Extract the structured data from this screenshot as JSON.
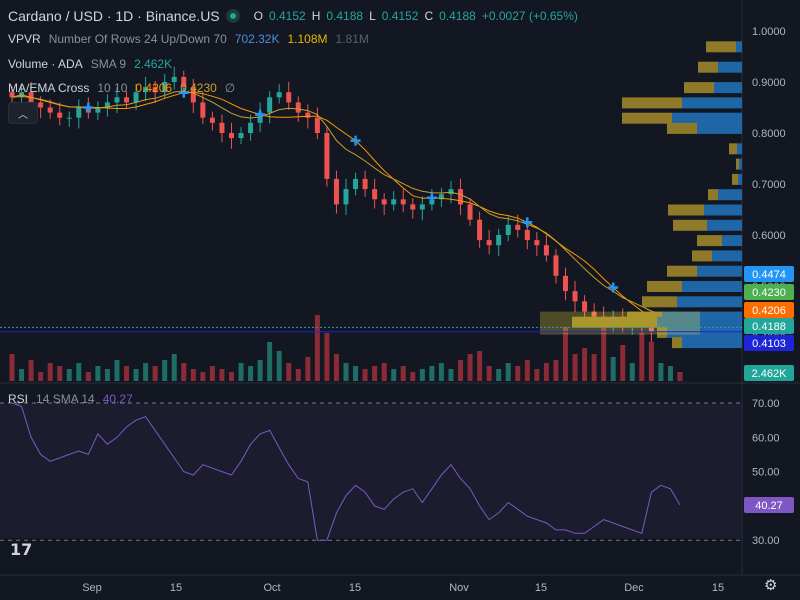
{
  "header": {
    "title": "Cardano / USD · 1D · Binance.US",
    "ohlc": [
      {
        "k": "O",
        "v": "0.4152"
      },
      {
        "k": "H",
        "v": "0.4188"
      },
      {
        "k": "L",
        "v": "0.4152"
      },
      {
        "k": "C",
        "v": "0.4188"
      }
    ],
    "change": "+0.0027 (+0.65%)"
  },
  "indicators": {
    "vpvr": {
      "name": "VPVR",
      "params": "Number Of Rows 24 Up/Down 70",
      "v1": "702.32K",
      "v2": "1.108M",
      "v3": "1.81M"
    },
    "volume": {
      "name": "Volume · ADA",
      "params": "SMA 9",
      "value": "2.462K"
    },
    "ma": {
      "name": "MA/EMA Cross",
      "params": "10 10",
      "v1": "0.4206",
      "v2": "0.4230",
      "v3": "∅"
    },
    "rsi": {
      "name": "RSI",
      "params": "14 SMA 14",
      "value": "40.27"
    }
  },
  "colors": {
    "bg": "#131722",
    "up": "#26a69a",
    "down": "#ef5350",
    "vol_up": "#1e6d66",
    "vol_down": "#8a2b35",
    "ma": "#ff9800",
    "ema": "#c8a02a",
    "cross": "#2196f3",
    "rsi": "#7e57c2",
    "vp_up": "#1e66a6",
    "vp_down": "#8f7a2a"
  },
  "price_axis": {
    "ticks": [
      "1.0000",
      "0.9000",
      "0.8000",
      "0.7000",
      "0.6000",
      "0.5000",
      "0.4000"
    ],
    "labels": [
      {
        "text": "0.4474",
        "color": "#2196f3"
      },
      {
        "text": "0.4230",
        "color": "#4caf50"
      },
      {
        "text": "0.4206",
        "color": "#ff6d00"
      },
      {
        "text": "0.4188",
        "color": "#22a69a"
      },
      {
        "text": "0.4103",
        "color": "#1e24d8"
      },
      {
        "text": "2.462K",
        "color": "#22a69a"
      }
    ]
  },
  "rsi_axis": {
    "ticks": [
      "70.00",
      "60.00",
      "50.00",
      "40.00",
      "30.00"
    ],
    "label": "40.27"
  },
  "time_axis": [
    "Sep",
    "15",
    "Oct",
    "15",
    "Nov",
    "15",
    "Dec",
    "15"
  ],
  "chart_data": {
    "type": "candlestick",
    "symbol": "Cardano / USD",
    "interval": "1D",
    "exchange": "Binance.US",
    "ylim": [
      0.38,
      1.02
    ],
    "close_trend": [
      0.87,
      0.88,
      0.86,
      0.85,
      0.84,
      0.83,
      0.83,
      0.85,
      0.84,
      0.85,
      0.86,
      0.87,
      0.86,
      0.88,
      0.89,
      0.88,
      0.9,
      0.91,
      0.89,
      0.86,
      0.83,
      0.82,
      0.8,
      0.79,
      0.8,
      0.82,
      0.84,
      0.87,
      0.88,
      0.86,
      0.84,
      0.83,
      0.8,
      0.71,
      0.66,
      0.69,
      0.71,
      0.69,
      0.67,
      0.66,
      0.67,
      0.66,
      0.65,
      0.66,
      0.67,
      0.68,
      0.69,
      0.66,
      0.63,
      0.59,
      0.58,
      0.6,
      0.62,
      0.61,
      0.59,
      0.58,
      0.56,
      0.52,
      0.49,
      0.47,
      0.45,
      0.44,
      0.43,
      0.44,
      0.42,
      0.43,
      0.42,
      0.41,
      0.42,
      0.42,
      0.4188
    ],
    "rsi_trend": [
      70,
      69,
      60,
      55,
      53,
      54,
      55,
      56,
      55,
      61,
      58,
      60,
      63,
      65,
      66,
      62,
      58,
      54,
      50,
      49,
      52,
      51,
      50,
      49,
      53,
      58,
      61,
      62,
      57,
      52,
      48,
      47,
      30,
      30,
      38,
      43,
      46,
      44,
      40,
      39,
      42,
      44,
      45,
      41,
      45,
      49,
      52,
      48,
      45,
      40,
      36,
      38,
      41,
      39,
      37,
      36,
      35,
      33,
      33,
      32,
      32,
      34,
      36,
      35,
      34,
      33,
      32,
      44,
      46,
      45,
      40.27
    ],
    "volume_trend": [
      0.9,
      0.4,
      0.7,
      0.3,
      0.6,
      0.5,
      0.4,
      0.6,
      0.3,
      0.5,
      0.4,
      0.7,
      0.5,
      0.4,
      0.6,
      0.5,
      0.7,
      0.9,
      0.6,
      0.4,
      0.3,
      0.5,
      0.4,
      0.3,
      0.6,
      0.5,
      0.7,
      1.3,
      1.0,
      0.6,
      0.4,
      0.8,
      2.2,
      1.6,
      0.9,
      0.6,
      0.5,
      0.4,
      0.5,
      0.6,
      0.4,
      0.5,
      0.3,
      0.4,
      0.5,
      0.6,
      0.4,
      0.7,
      0.9,
      1.0,
      0.5,
      0.4,
      0.6,
      0.5,
      0.7,
      0.4,
      0.6,
      0.7,
      1.8,
      0.9,
      1.1,
      0.9,
      2.0,
      0.8,
      1.2,
      0.6,
      1.6,
      1.3,
      0.6,
      0.5,
      0.3
    ]
  }
}
